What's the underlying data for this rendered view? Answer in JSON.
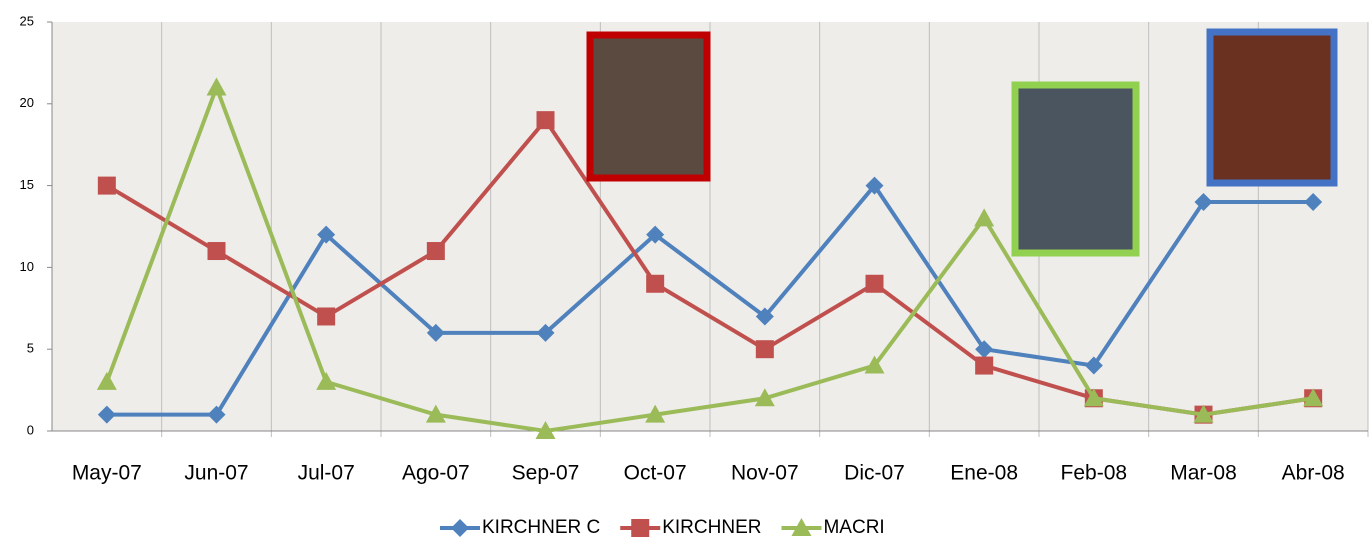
{
  "chart_data": {
    "type": "line",
    "categories": [
      "May-07",
      "Jun-07",
      "Jul-07",
      "Ago-07",
      "Sep-07",
      "Oct-07",
      "Nov-07",
      "Dic-07",
      "Ene-08",
      "Feb-08",
      "Mar-08",
      "Abr-08"
    ],
    "series": [
      {
        "name": "KIRCHNER C",
        "color": "#4f81bd",
        "marker": "diamond",
        "values": [
          1,
          1,
          12,
          6,
          6,
          12,
          7,
          15,
          5,
          4,
          14,
          14
        ]
      },
      {
        "name": "KIRCHNER",
        "color": "#c0504d",
        "marker": "square",
        "values": [
          15,
          11,
          7,
          11,
          19,
          9,
          5,
          9,
          4,
          2,
          1,
          2
        ]
      },
      {
        "name": "MACRI",
        "color": "#9bbb59",
        "marker": "triangle",
        "values": [
          3,
          21,
          3,
          1,
          0,
          1,
          2,
          4,
          13,
          2,
          1,
          2
        ]
      }
    ],
    "ylim": [
      0,
      25
    ],
    "yticks": [
      0,
      5,
      10,
      15,
      20,
      25
    ],
    "legend": "bottom"
  }
}
